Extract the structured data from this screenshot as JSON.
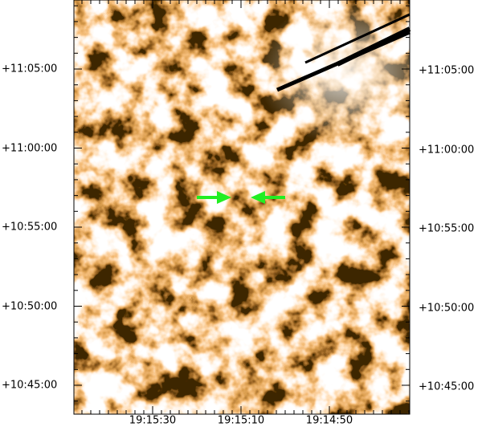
{
  "image": {
    "y_ticks": [
      "+11:05:00",
      "+11:00:00",
      "+10:55:00",
      "+10:50:00",
      "+10:45:00"
    ],
    "x_ticks": [
      "19:15:30",
      "19:15:10",
      "19:14:50"
    ]
  }
}
